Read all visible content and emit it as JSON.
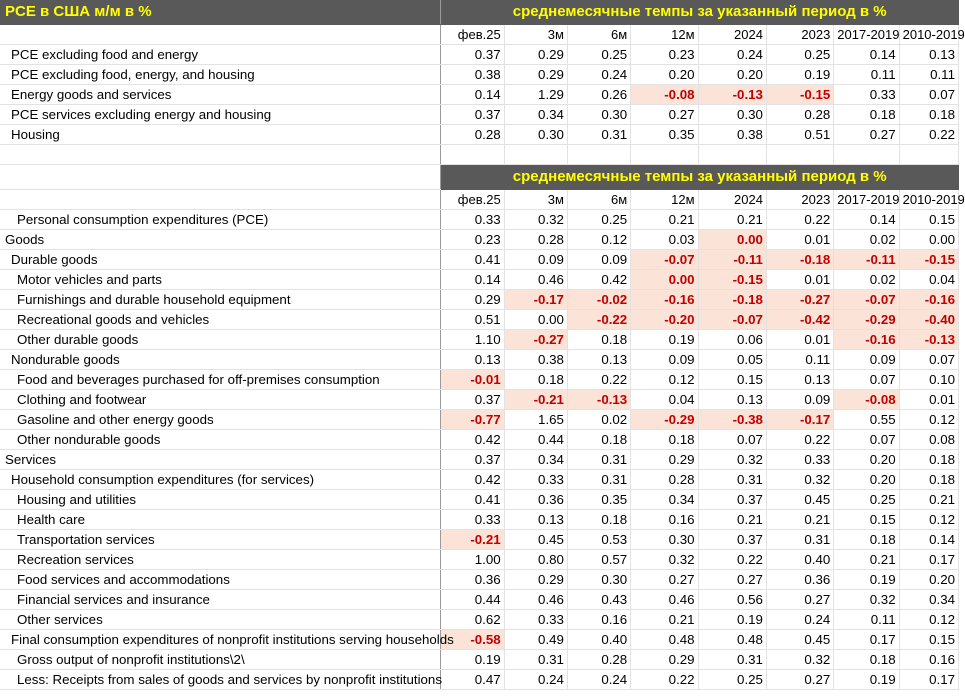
{
  "title": "PCE в США м/м в %",
  "banner": "среднемесячные темпы за указанный период в %",
  "columns": [
    "фев.25",
    "3м",
    "6м",
    "12м",
    "2024",
    "2023",
    "2017-2019",
    "2010-2019"
  ],
  "colors": {
    "header_bg": "#595959",
    "header_text": "#ffff00",
    "negative_text": "#c00000",
    "highlight_bg": "#fbe3d8"
  },
  "table1": [
    {
      "label": "PCE excluding food and energy",
      "indent": 1,
      "values": [
        "0.37",
        "0.29",
        "0.25",
        "0.23",
        "0.24",
        "0.25",
        "0.14",
        "0.13"
      ],
      "hl": []
    },
    {
      "label": "PCE excluding food, energy, and housing",
      "indent": 1,
      "values": [
        "0.38",
        "0.29",
        "0.24",
        "0.20",
        "0.20",
        "0.19",
        "0.11",
        "0.11"
      ],
      "hl": []
    },
    {
      "label": "Energy goods and services",
      "indent": 1,
      "values": [
        "0.14",
        "1.29",
        "0.26",
        "-0.08",
        "-0.13",
        "-0.15",
        "0.33",
        "0.07"
      ],
      "hl": [
        3,
        4,
        5
      ]
    },
    {
      "label": "PCE services excluding energy and housing",
      "indent": 1,
      "values": [
        "0.37",
        "0.34",
        "0.30",
        "0.27",
        "0.30",
        "0.28",
        "0.18",
        "0.18"
      ],
      "hl": []
    },
    {
      "label": "Housing",
      "indent": 1,
      "values": [
        "0.28",
        "0.30",
        "0.31",
        "0.35",
        "0.38",
        "0.51",
        "0.27",
        "0.22"
      ],
      "hl": []
    }
  ],
  "table2": [
    {
      "label": "Personal consumption expenditures (PCE)",
      "indent": 2,
      "values": [
        "0.33",
        "0.32",
        "0.25",
        "0.21",
        "0.21",
        "0.22",
        "0.14",
        "0.15"
      ],
      "hl": []
    },
    {
      "label": "Goods",
      "indent": 0,
      "values": [
        "0.23",
        "0.28",
        "0.12",
        "0.03",
        "0.00",
        "0.01",
        "0.02",
        "0.00"
      ],
      "hl": [
        4
      ]
    },
    {
      "label": "Durable goods",
      "indent": 1,
      "values": [
        "0.41",
        "0.09",
        "0.09",
        "-0.07",
        "-0.11",
        "-0.18",
        "-0.11",
        "-0.15"
      ],
      "hl": [
        3,
        4,
        5,
        6,
        7
      ]
    },
    {
      "label": "Motor vehicles and parts",
      "indent": 2,
      "values": [
        "0.14",
        "0.46",
        "0.42",
        "0.00",
        "-0.15",
        "0.01",
        "0.02",
        "0.04"
      ],
      "hl": [
        3,
        4
      ]
    },
    {
      "label": "Furnishings and durable household equipment",
      "indent": 2,
      "values": [
        "0.29",
        "-0.17",
        "-0.02",
        "-0.16",
        "-0.18",
        "-0.27",
        "-0.07",
        "-0.16"
      ],
      "hl": [
        1,
        2,
        3,
        4,
        5,
        6,
        7
      ]
    },
    {
      "label": "Recreational goods and vehicles",
      "indent": 2,
      "values": [
        "0.51",
        "0.00",
        "-0.22",
        "-0.20",
        "-0.07",
        "-0.42",
        "-0.29",
        "-0.40"
      ],
      "hl": [
        2,
        3,
        4,
        5,
        6,
        7
      ]
    },
    {
      "label": "Other durable goods",
      "indent": 2,
      "values": [
        "1.10",
        "-0.27",
        "0.18",
        "0.19",
        "0.06",
        "0.01",
        "-0.16",
        "-0.13"
      ],
      "hl": [
        1,
        6,
        7
      ]
    },
    {
      "label": "Nondurable goods",
      "indent": 1,
      "values": [
        "0.13",
        "0.38",
        "0.13",
        "0.09",
        "0.05",
        "0.11",
        "0.09",
        "0.07"
      ],
      "hl": []
    },
    {
      "label": "Food and beverages purchased for off-premises consumption",
      "indent": 2,
      "values": [
        "-0.01",
        "0.18",
        "0.22",
        "0.12",
        "0.15",
        "0.13",
        "0.07",
        "0.10"
      ],
      "hl": [
        0
      ]
    },
    {
      "label": "Clothing and footwear",
      "indent": 2,
      "values": [
        "0.37",
        "-0.21",
        "-0.13",
        "0.04",
        "0.13",
        "0.09",
        "-0.08",
        "0.01"
      ],
      "hl": [
        1,
        2,
        6
      ]
    },
    {
      "label": "Gasoline and other energy goods",
      "indent": 2,
      "values": [
        "-0.77",
        "1.65",
        "0.02",
        "-0.29",
        "-0.38",
        "-0.17",
        "0.55",
        "0.12"
      ],
      "hl": [
        0,
        3,
        4,
        5
      ]
    },
    {
      "label": "Other nondurable goods",
      "indent": 2,
      "values": [
        "0.42",
        "0.44",
        "0.18",
        "0.18",
        "0.07",
        "0.22",
        "0.07",
        "0.08"
      ],
      "hl": []
    },
    {
      "label": "Services",
      "indent": 0,
      "values": [
        "0.37",
        "0.34",
        "0.31",
        "0.29",
        "0.32",
        "0.33",
        "0.20",
        "0.18"
      ],
      "hl": []
    },
    {
      "label": "Household consumption expenditures (for services)",
      "indent": 1,
      "values": [
        "0.42",
        "0.33",
        "0.31",
        "0.28",
        "0.31",
        "0.32",
        "0.20",
        "0.18"
      ],
      "hl": []
    },
    {
      "label": "Housing and utilities",
      "indent": 2,
      "values": [
        "0.41",
        "0.36",
        "0.35",
        "0.34",
        "0.37",
        "0.45",
        "0.25",
        "0.21"
      ],
      "hl": []
    },
    {
      "label": "Health care",
      "indent": 2,
      "values": [
        "0.33",
        "0.13",
        "0.18",
        "0.16",
        "0.21",
        "0.21",
        "0.15",
        "0.12"
      ],
      "hl": []
    },
    {
      "label": "Transportation services",
      "indent": 2,
      "values": [
        "-0.21",
        "0.45",
        "0.53",
        "0.30",
        "0.37",
        "0.31",
        "0.18",
        "0.14"
      ],
      "hl": [
        0
      ]
    },
    {
      "label": "Recreation services",
      "indent": 2,
      "values": [
        "1.00",
        "0.80",
        "0.57",
        "0.32",
        "0.22",
        "0.40",
        "0.21",
        "0.17"
      ],
      "hl": []
    },
    {
      "label": "Food services and accommodations",
      "indent": 2,
      "values": [
        "0.36",
        "0.29",
        "0.30",
        "0.27",
        "0.27",
        "0.36",
        "0.19",
        "0.20"
      ],
      "hl": []
    },
    {
      "label": "Financial services and insurance",
      "indent": 2,
      "values": [
        "0.44",
        "0.46",
        "0.43",
        "0.46",
        "0.56",
        "0.27",
        "0.32",
        "0.34"
      ],
      "hl": []
    },
    {
      "label": "Other services",
      "indent": 2,
      "values": [
        "0.62",
        "0.33",
        "0.16",
        "0.21",
        "0.19",
        "0.24",
        "0.11",
        "0.12"
      ],
      "hl": []
    },
    {
      "label": "Final consumption expenditures of nonprofit institutions serving households",
      "indent": 1,
      "values": [
        "-0.58",
        "0.49",
        "0.40",
        "0.48",
        "0.48",
        "0.45",
        "0.17",
        "0.15"
      ],
      "hl": [
        0
      ]
    },
    {
      "label": "Gross output of nonprofit institutions\\2\\",
      "indent": 2,
      "values": [
        "0.19",
        "0.31",
        "0.28",
        "0.29",
        "0.31",
        "0.32",
        "0.18",
        "0.16"
      ],
      "hl": []
    },
    {
      "label": "Less: Receipts from sales of goods and services by nonprofit institutions",
      "indent": 2,
      "values": [
        "0.47",
        "0.24",
        "0.24",
        "0.22",
        "0.25",
        "0.27",
        "0.19",
        "0.17"
      ],
      "hl": []
    }
  ]
}
